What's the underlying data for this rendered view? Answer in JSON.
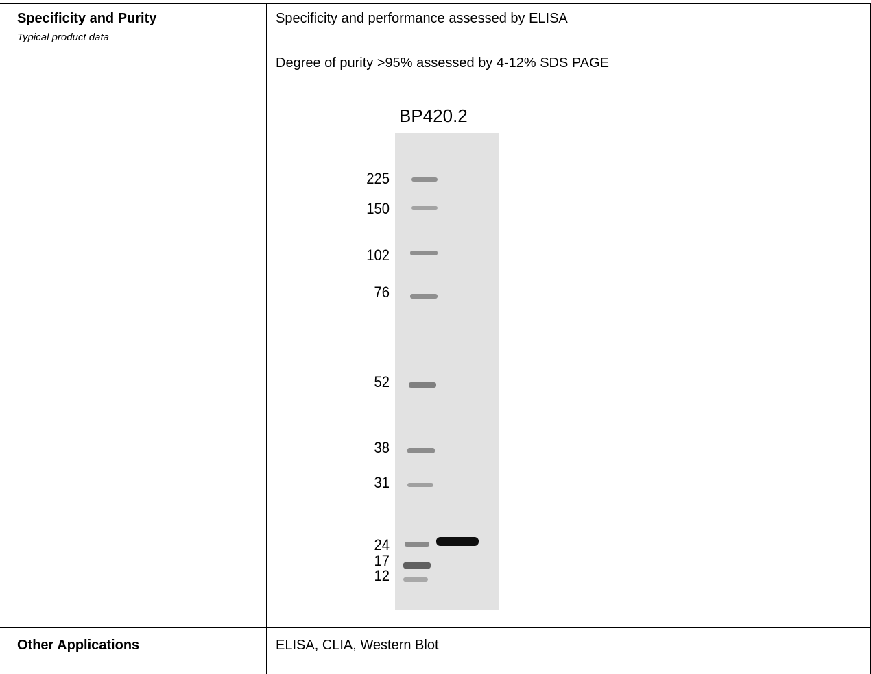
{
  "rows": [
    {
      "label": "Specificity and Purity",
      "sublabel": "Typical product data",
      "lines": [
        "Specificity and performance assessed by ELISA",
        "Degree of purity >95% assessed by 4-12% SDS PAGE"
      ]
    },
    {
      "label": "Other Applications",
      "lines": [
        "ELISA, CLIA, Western Blot"
      ]
    }
  ],
  "gel": {
    "title": "BP420.2",
    "markers": [
      "225",
      "150",
      "102",
      "76",
      "52",
      "38",
      "31",
      "24",
      "17",
      "12"
    ]
  }
}
